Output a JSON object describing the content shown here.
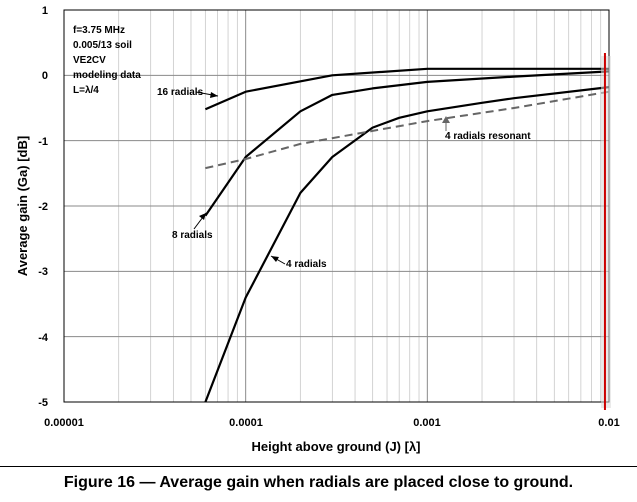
{
  "chart_data": {
    "type": "line",
    "xscale": "log",
    "xlim": [
      1e-05,
      0.01
    ],
    "ylim": [
      -5,
      1
    ],
    "xlabel": "Height above ground (J) [λ]",
    "ylabel": "Average gain (Ga) [dB]",
    "xtick_labels": [
      "0.00001",
      "0.0001",
      "0.001",
      "0.01"
    ],
    "ytick_labels": [
      "1",
      "0",
      "-1",
      "-2",
      "-3",
      "-4",
      "-5"
    ],
    "info_lines": [
      "f=3.75 MHz",
      "0.005/13 soil",
      "VE2CV",
      "modeling data",
      "L=λ/4"
    ],
    "series": [
      {
        "name": "16 radials",
        "style": "solid",
        "color": "#000000",
        "x": [
          6e-05,
          0.0001,
          0.0003,
          0.001,
          0.003,
          0.01
        ],
        "y": [
          -0.52,
          -0.25,
          0.0,
          0.1,
          0.1,
          0.1
        ]
      },
      {
        "name": "8 radials",
        "style": "solid",
        "color": "#000000",
        "x": [
          6e-05,
          0.0001,
          0.0002,
          0.0003,
          0.0005,
          0.001,
          0.003,
          0.01
        ],
        "y": [
          -2.15,
          -1.25,
          -0.55,
          -0.3,
          -0.2,
          -0.1,
          -0.02,
          0.06
        ]
      },
      {
        "name": "4 radials",
        "style": "solid",
        "color": "#000000",
        "x": [
          6e-05,
          0.0001,
          0.0002,
          0.0003,
          0.0005,
          0.0007,
          0.001,
          0.002,
          0.003,
          0.01
        ],
        "y": [
          -5.0,
          -3.4,
          -1.8,
          -1.25,
          -0.8,
          -0.65,
          -0.55,
          -0.42,
          -0.35,
          -0.18
        ]
      },
      {
        "name": "4 radials resonant",
        "style": "dashed",
        "color": "#666666",
        "x": [
          6e-05,
          0.0001,
          0.0002,
          0.0005,
          0.001,
          0.003,
          0.01
        ],
        "y": [
          -1.42,
          -1.28,
          -1.05,
          -0.85,
          -0.7,
          -0.5,
          -0.25
        ]
      }
    ],
    "annotations": [
      {
        "text": "16 radials",
        "series": "16 radials",
        "at_x": 6e-05
      },
      {
        "text": "8 radials",
        "series": "8 radials",
        "at_x": 6e-05
      },
      {
        "text": "4 radials",
        "series": "4 radials",
        "at_x": 0.00014
      },
      {
        "text": "4 radials resonant",
        "series": "4 radials resonant",
        "at_x": 0.0013
      }
    ],
    "marker_line": {
      "x": 0.0095,
      "color": "#cc0000"
    }
  },
  "caption": "Figure 16 — Average gain when radials are placed close to ground."
}
